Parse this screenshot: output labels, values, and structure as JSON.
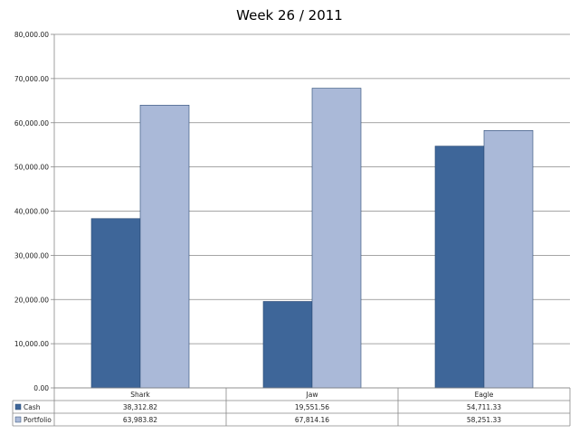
{
  "chart_data": {
    "type": "bar",
    "title": "Week 26 / 2011",
    "xlabel": "",
    "ylabel": "",
    "categories": [
      "Shark",
      "Jaw",
      "Eagle"
    ],
    "series": [
      {
        "name": "Cash",
        "values": [
          38312.82,
          19551.56,
          54711.33
        ],
        "color": "#3e6699"
      },
      {
        "name": "Portfolio",
        "values": [
          63983.82,
          67814.16,
          58251.33
        ],
        "color": "#aab9d8"
      }
    ],
    "ylim": [
      0,
      80000
    ],
    "yticks": [
      {
        "value": 0,
        "label": "0.00"
      },
      {
        "value": 10000,
        "label": "10,000.00"
      },
      {
        "value": 20000,
        "label": "20,000.00"
      },
      {
        "value": 30000,
        "label": "30,000.00"
      },
      {
        "value": 40000,
        "label": "40,000.00"
      },
      {
        "value": 50000,
        "label": "50,000.00"
      },
      {
        "value": 60000,
        "label": "60,000.00"
      },
      {
        "value": 70000,
        "label": "70,000.00"
      },
      {
        "value": 80000,
        "label": "80,000.00"
      }
    ],
    "data_table": {
      "rows": [
        {
          "series": "Cash",
          "cells": [
            "38,312.82",
            "19,551.56",
            "54,711.33"
          ]
        },
        {
          "series": "Portfolio",
          "cells": [
            "63,983.82",
            "67,814.16",
            "58,251.33"
          ]
        }
      ]
    },
    "grid": true,
    "legend": "data-table"
  }
}
